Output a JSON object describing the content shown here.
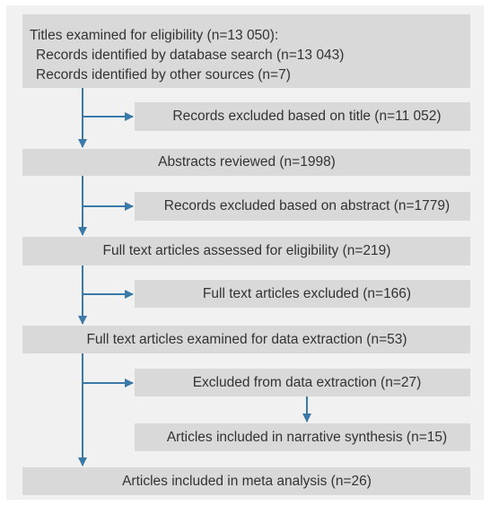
{
  "nodes": [
    {
      "lines": [
        "Titles examined for eligibility (n=13 050):",
        "Records identified by database search (n=13 043)",
        "Records identified by other sources (n=7)"
      ]
    },
    {
      "label": "Records excluded based on title (n=11 052)"
    },
    {
      "label": "Abstracts reviewed (n=1998)"
    },
    {
      "label": "Records excluded based on abstract (n=1779)"
    },
    {
      "label": "Full text articles assessed for eligibility (n=219)"
    },
    {
      "label": "Full text articles excluded (n=166)"
    },
    {
      "label": "Full text articles examined for data extraction (n=53)"
    },
    {
      "label": "Excluded from data extraction (n=27)"
    },
    {
      "label": "Articles included in narrative synthesis (n=15)"
    },
    {
      "label": "Articles included in meta analysis (n=26)"
    }
  ]
}
